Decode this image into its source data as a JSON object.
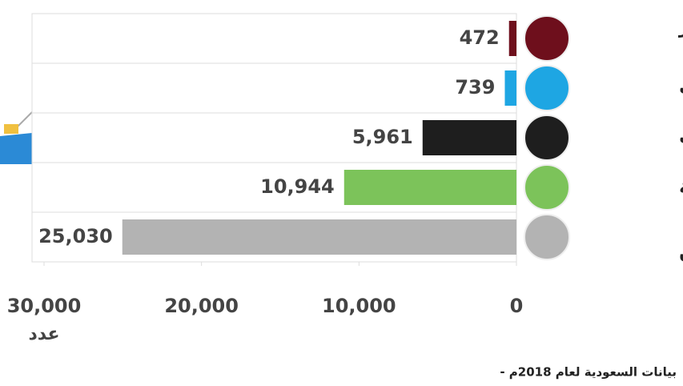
{
  "chart_data": {
    "type": "hbar",
    "categories": [
      "قطر",
      "الكويت",
      "الإمارات",
      "السعودية",
      "عمان"
    ],
    "values": [
      472,
      739,
      5961,
      10944,
      25030
    ],
    "value_labels": [
      "472",
      "739",
      "5,961",
      "10,944",
      "25,030"
    ],
    "colors": [
      "#6e0f1c",
      "#1ea6e3",
      "#1e1e1e",
      "#7cc35a",
      "#b3b3b3"
    ],
    "xlim": [
      0,
      30000
    ],
    "xticks": [
      0,
      {
        "value": 10000,
        "label": "10,000"
      },
      {
        "value": 20000,
        "label": "20,000"
      },
      {
        "value": 30000,
        "label": "30,000"
      }
    ],
    "xlabel": "عدد",
    "note": "- بيانات السعودية لعام 2018م"
  }
}
